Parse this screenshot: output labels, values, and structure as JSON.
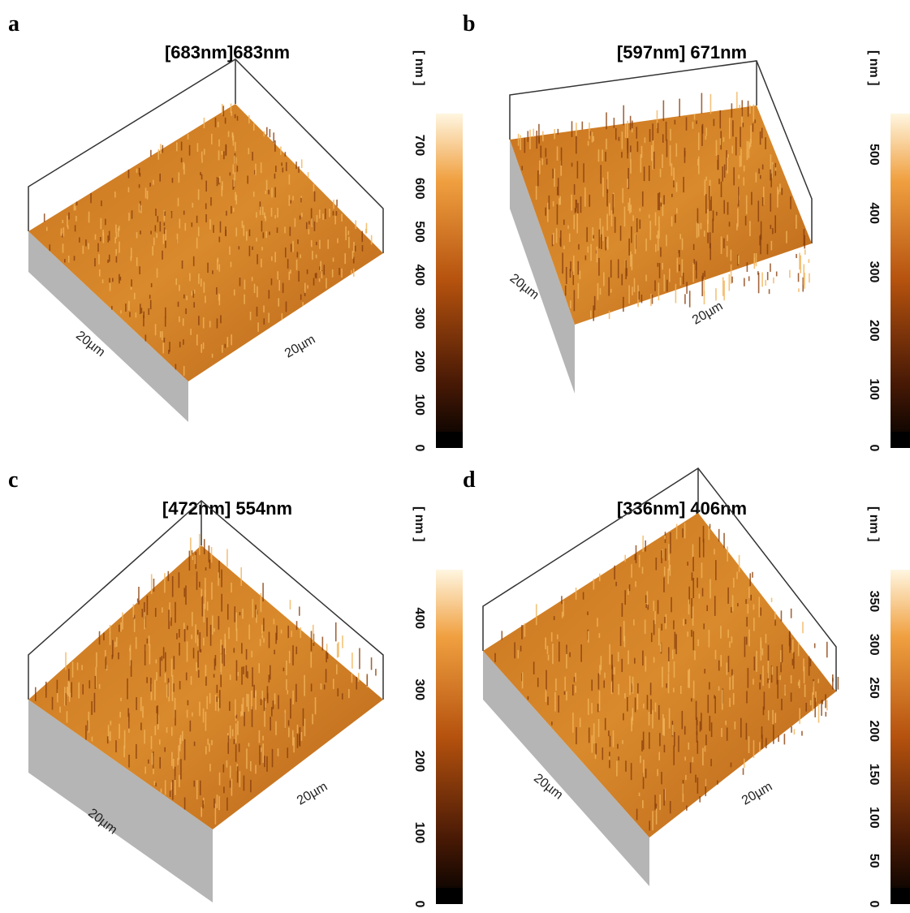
{
  "panels": [
    {
      "label": "a",
      "title": "[683nm]683nm",
      "unit": "[ nm ]",
      "axis_labels": [
        "20µm",
        "20µm"
      ],
      "scale_ticks": [
        0,
        100,
        200,
        300,
        400,
        500,
        600,
        700
      ]
    },
    {
      "label": "b",
      "title": "[597nm] 671nm",
      "unit": "[ nm ]",
      "axis_labels": [
        "20µm",
        "20µm"
      ],
      "scale_ticks": [
        0,
        100,
        200,
        300,
        400,
        500
      ]
    },
    {
      "label": "c",
      "title": "[472nm] 554nm",
      "unit": "[ nm ]",
      "axis_labels": [
        "20µm",
        "20µm"
      ],
      "scale_ticks": [
        0,
        100,
        200,
        300,
        400
      ]
    },
    {
      "label": "d",
      "title": "[336nm] 406nm",
      "unit": "[ nm ]",
      "axis_labels": [
        "20µm",
        "20µm"
      ],
      "scale_ticks": [
        0,
        50,
        100,
        150,
        200,
        250,
        300,
        350
      ]
    }
  ]
}
